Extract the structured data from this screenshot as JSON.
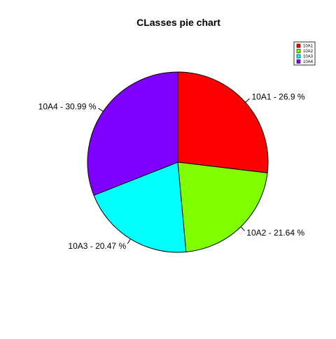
{
  "chart_data": {
    "type": "pie",
    "title": "CLasses pie chart",
    "categories": [
      "10A1",
      "10A2",
      "10A3",
      "10A4"
    ],
    "values": [
      26.9,
      21.64,
      20.47,
      30.99
    ],
    "slice_labels": [
      "10A1 - 26.9 %",
      "10A2 - 21.64 %",
      "10A3 - 20.47 %",
      "10A4 - 30.99 %"
    ],
    "colors": [
      "#FF0000",
      "#80FF00",
      "#00FFFF",
      "#8000FF"
    ],
    "legend": {
      "position": "top-right",
      "entries": [
        "10A1",
        "10A2",
        "10A3",
        "10A4"
      ]
    },
    "start": "top",
    "direction": "clockwise"
  }
}
